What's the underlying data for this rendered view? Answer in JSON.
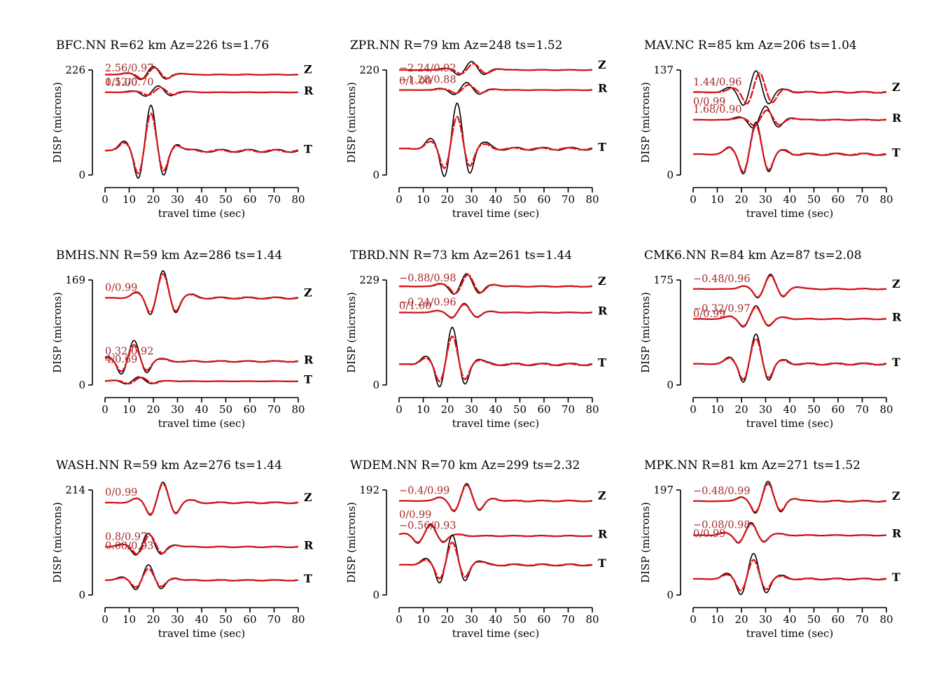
{
  "chart_data": [
    {
      "type": "line",
      "title": "BFC.NN R=62 km Az=226 ts=1.76",
      "ylabel": "DISP (microns)",
      "xlabel": "travel time (sec)",
      "x_ticks": [
        0,
        10,
        20,
        30,
        40,
        50,
        60,
        70,
        80
      ],
      "xlim": [
        0,
        80
      ],
      "y_ticks": [
        "226",
        "0"
      ],
      "ylim": [
        0,
        226
      ],
      "series": [
        {
          "name": "Z",
          "annotation": "2.56/0.97",
          "baseline": 216,
          "pk": 20,
          "amp": 18,
          "syn_scale": 0.85,
          "shift": 0.5
        },
        {
          "name": "R",
          "annotation": "1.52/0.70",
          "baseline": 178,
          "pk": 22,
          "amp": 14,
          "syn_scale": 0.7,
          "shift": 1
        },
        {
          "name": "T",
          "annotation": "0/1.00",
          "baseline": 52,
          "pk": 19,
          "amp": 100,
          "syn_scale": 0.82,
          "shift": 0
        }
      ]
    },
    {
      "type": "line",
      "title": "ZPR.NN R=79 km Az=248 ts=1.52",
      "ylabel": "DISP (microns)",
      "xlabel": "travel time (sec)",
      "x_ticks": [
        0,
        10,
        20,
        30,
        40,
        50,
        60,
        70,
        80
      ],
      "xlim": [
        0,
        80
      ],
      "y_ticks": [
        "220",
        "0"
      ],
      "ylim": [
        0,
        220
      ],
      "series": [
        {
          "name": "Z",
          "annotation": "−2.24/0.92",
          "baseline": 220,
          "pk": 30,
          "amp": 18,
          "syn_scale": 0.75,
          "shift": 0.8
        },
        {
          "name": "R",
          "annotation": "−1.28/0.88",
          "baseline": 178,
          "pk": 28,
          "amp": 16,
          "syn_scale": 0.7,
          "shift": 0.8
        },
        {
          "name": "T",
          "annotation": "0/1.00",
          "baseline": 55,
          "pk": 24,
          "amp": 96,
          "syn_scale": 0.7,
          "shift": 0
        }
      ]
    },
    {
      "type": "line",
      "title": "MAV.NC R=85 km Az=206 ts=1.04",
      "ylabel": "DISP (microns)",
      "xlabel": "travel time (sec)",
      "x_ticks": [
        0,
        10,
        20,
        30,
        40,
        50,
        60,
        70,
        80
      ],
      "xlim": [
        0,
        80
      ],
      "y_ticks": [
        "137",
        "0"
      ],
      "ylim": [
        0,
        137
      ],
      "series": [
        {
          "name": "Z",
          "annotation": "1.44/0.96",
          "baseline": 108,
          "pk": 26,
          "amp": 28,
          "syn_scale": 0.9,
          "shift": 1.5
        },
        {
          "name": "R",
          "annotation": "1.68/0.90",
          "baseline": 72,
          "pk": 30,
          "amp": 18,
          "syn_scale": 0.7,
          "shift": 0.5
        },
        {
          "name": "T",
          "annotation": "0/0.99",
          "baseline": 27,
          "pk": 26,
          "amp": 42,
          "syn_scale": 0.9,
          "shift": 0
        }
      ]
    },
    {
      "type": "line",
      "title": "BMHS.NN R=59 km Az=286 ts=1.44",
      "ylabel": "DISP (microns)",
      "xlabel": "travel time (sec)",
      "x_ticks": [
        0,
        10,
        20,
        30,
        40,
        50,
        60,
        70,
        80
      ],
      "xlim": [
        0,
        80
      ],
      "y_ticks": [
        "169",
        "0"
      ],
      "ylim": [
        0,
        169
      ],
      "series": [
        {
          "name": "Z",
          "annotation": "0/0.99",
          "baseline": 140,
          "pk": 24,
          "amp": 44,
          "syn_scale": 0.88,
          "shift": 0
        },
        {
          "name": "R",
          "annotation": "0.32/0.92",
          "baseline": 38,
          "pk": 12,
          "amp": 34,
          "syn_scale": 0.78,
          "shift": 0
        },
        {
          "name": "T",
          "annotation": "4/0.69",
          "baseline": 6,
          "pk": 14,
          "amp": 7,
          "syn_scale": 0.9,
          "shift": 1
        }
      ]
    },
    {
      "type": "line",
      "title": "TBRD.NN R=73 km Az=261 ts=1.44",
      "ylabel": "DISP (microns)",
      "xlabel": "travel time (sec)",
      "x_ticks": [
        0,
        10,
        20,
        30,
        40,
        50,
        60,
        70,
        80
      ],
      "xlim": [
        0,
        80
      ],
      "y_ticks": [
        "229",
        "0"
      ],
      "ylim": [
        0,
        229
      ],
      "series": [
        {
          "name": "Z",
          "annotation": "−0.88/0.98",
          "baseline": 215,
          "pk": 28,
          "amp": 28,
          "syn_scale": 0.92,
          "shift": 0.5
        },
        {
          "name": "R",
          "annotation": "−0.24/0.96",
          "baseline": 158,
          "pk": 27,
          "amp": 20,
          "syn_scale": 0.9,
          "shift": 0
        },
        {
          "name": "T",
          "annotation": "0/1.00",
          "baseline": 45,
          "pk": 22,
          "amp": 82,
          "syn_scale": 0.75,
          "shift": 0
        }
      ]
    },
    {
      "type": "line",
      "title": "CMK6.NN R=84 km Az=87 ts=2.08",
      "ylabel": "DISP (microns)",
      "xlabel": "travel time (sec)",
      "x_ticks": [
        0,
        10,
        20,
        30,
        40,
        50,
        60,
        70,
        80
      ],
      "xlim": [
        0,
        80
      ],
      "y_ticks": [
        "175",
        "0"
      ],
      "ylim": [
        0,
        175
      ],
      "series": [
        {
          "name": "Z",
          "annotation": "−0.48/0.96",
          "baseline": 160,
          "pk": 32,
          "amp": 25,
          "syn_scale": 0.9,
          "shift": 0
        },
        {
          "name": "R",
          "annotation": "−0.32/0.97",
          "baseline": 110,
          "pk": 26,
          "amp": 22,
          "syn_scale": 0.9,
          "shift": 0
        },
        {
          "name": "T",
          "annotation": "0/0.99",
          "baseline": 35,
          "pk": 26,
          "amp": 50,
          "syn_scale": 0.85,
          "shift": 0
        }
      ]
    },
    {
      "type": "line",
      "title": "WASH.NN R=59 km Az=276 ts=1.44",
      "ylabel": "DISP (microns)",
      "xlabel": "travel time (sec)",
      "x_ticks": [
        0,
        10,
        20,
        30,
        40,
        50,
        60,
        70,
        80
      ],
      "xlim": [
        0,
        80
      ],
      "y_ticks": [
        "214",
        "0"
      ],
      "ylim": [
        0,
        214
      ],
      "series": [
        {
          "name": "Z",
          "annotation": "0/0.99",
          "baseline": 188,
          "pk": 24,
          "amp": 42,
          "syn_scale": 0.92,
          "shift": 0
        },
        {
          "name": "R",
          "annotation": "0.8/0.97",
          "baseline": 98,
          "pk": 18,
          "amp": 28,
          "syn_scale": 0.88,
          "shift": 0.5
        },
        {
          "name": "T",
          "annotation": "0.08/0.93",
          "baseline": 30,
          "pk": 18,
          "amp": 32,
          "syn_scale": 0.75,
          "shift": 0
        }
      ]
    },
    {
      "type": "line",
      "title": "WDEM.NN R=70 km Az=299 ts=2.32",
      "ylabel": "DISP (microns)",
      "xlabel": "travel time (sec)",
      "x_ticks": [
        0,
        10,
        20,
        30,
        40,
        50,
        60,
        70,
        80
      ],
      "xlim": [
        0,
        80
      ],
      "y_ticks": [
        "192",
        "0"
      ],
      "ylim": [
        0,
        192
      ],
      "series": [
        {
          "name": "Z",
          "annotation": "−0.4/0.99",
          "baseline": 172,
          "pk": 28,
          "amp": 32,
          "syn_scale": 0.93,
          "shift": 0
        },
        {
          "name": "R",
          "annotation": "−0.56/0.93",
          "baseline": 108,
          "pk": 13,
          "amp": 22,
          "syn_scale": 0.88,
          "shift": 0
        },
        {
          "name": "T",
          "annotation": "0/0.99",
          "baseline": 55,
          "pk": 22,
          "amp": 55,
          "syn_scale": 0.75,
          "shift": 0
        }
      ]
    },
    {
      "type": "line",
      "title": "MPK.NN R=81 km Az=271 ts=1.52",
      "ylabel": "DISP (microns)",
      "xlabel": "travel time (sec)",
      "x_ticks": [
        0,
        10,
        20,
        30,
        40,
        50,
        60,
        70,
        80
      ],
      "xlim": [
        0,
        80
      ],
      "y_ticks": [
        "197",
        "0"
      ],
      "ylim": [
        0,
        197
      ],
      "series": [
        {
          "name": "Z",
          "annotation": "−0.48/0.99",
          "baseline": 176,
          "pk": 31,
          "amp": 38,
          "syn_scale": 0.88,
          "shift": 0
        },
        {
          "name": "R",
          "annotation": "−0.08/0.98",
          "baseline": 112,
          "pk": 24,
          "amp": 24,
          "syn_scale": 0.9,
          "shift": 0
        },
        {
          "name": "T",
          "annotation": "0/0.99",
          "baseline": 30,
          "pk": 25,
          "amp": 48,
          "syn_scale": 0.75,
          "shift": 0
        }
      ]
    }
  ]
}
